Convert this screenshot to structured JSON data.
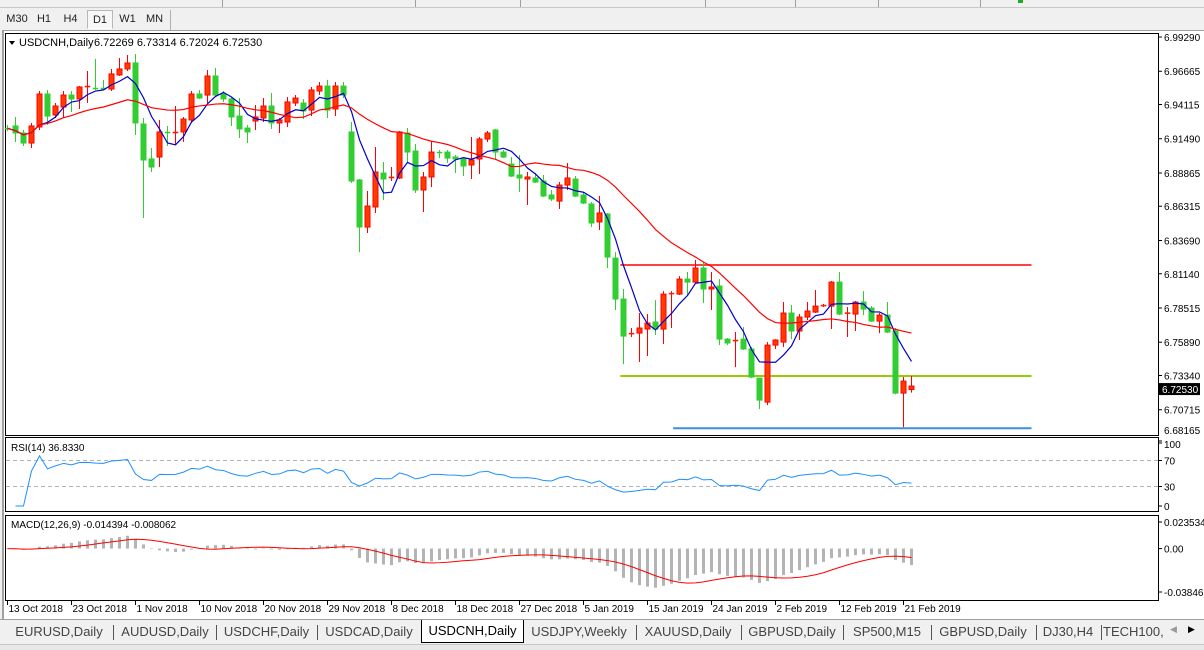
{
  "toolbar": {
    "timeframes": [
      "M30",
      "H1",
      "H4",
      "D1",
      "W1",
      "MN"
    ],
    "active": "D1"
  },
  "chart": {
    "symbol_header": "USDCNH,Daily",
    "ohlc_header": "6.72269 6.73314 6.72024 6.72530",
    "current_price": "6.72530",
    "rsi_label": "RSI(14) 36.8330",
    "macd_label": "MACD(12,26,9) -0.014394 -0.008062"
  },
  "chart_data": {
    "type": "candlestick",
    "symbol": "USDCNH",
    "timeframe": "Daily",
    "bullish_color": "#ff3c00",
    "bearish_color": "#32cd32",
    "ma_colors": [
      "#0000cc",
      "#ff0000"
    ],
    "ohlc": [
      [
        6.9231,
        6.9254,
        6.9208,
        6.9228
      ],
      [
        6.9247,
        6.9316,
        6.9124,
        6.9193
      ],
      [
        6.9193,
        6.9216,
        6.9093,
        6.9116
      ],
      [
        6.9116,
        6.927,
        6.9078,
        6.9247
      ],
      [
        6.9239,
        6.9515,
        6.9216,
        6.9492
      ],
      [
        6.9492,
        6.9523,
        6.9254,
        6.9323
      ],
      [
        6.9331,
        6.9423,
        6.9308,
        6.94
      ],
      [
        6.9392,
        6.9515,
        6.9308,
        6.9484
      ],
      [
        6.9484,
        6.9515,
        6.9354,
        6.9454
      ],
      [
        6.9454,
        6.9553,
        6.9377,
        6.9546
      ],
      [
        6.9546,
        6.9668,
        6.9423,
        6.9553
      ],
      [
        6.9538,
        6.9761,
        6.9523,
        6.9535
      ],
      [
        6.9538,
        6.96,
        6.9523,
        6.953
      ],
      [
        6.953,
        6.9684,
        6.9515,
        6.9646
      ],
      [
        6.9638,
        6.9768,
        6.963,
        6.9684
      ],
      [
        6.9684,
        6.9791,
        6.9668,
        6.973
      ],
      [
        6.973,
        6.9799,
        6.9178,
        6.927
      ],
      [
        6.9262,
        6.9308,
        6.8541,
        6.8986
      ],
      [
        6.8994,
        6.9078,
        6.8894,
        6.8932
      ],
      [
        6.9009,
        6.9293,
        6.8932,
        6.9201
      ],
      [
        6.9201,
        6.9247,
        6.9093,
        6.9193
      ],
      [
        6.9193,
        6.94,
        6.9101,
        6.9201
      ],
      [
        6.9201,
        6.9316,
        6.9124,
        6.93
      ],
      [
        6.9293,
        6.9515,
        6.927,
        6.9492
      ],
      [
        6.9492,
        6.9523,
        6.9454,
        6.9461
      ],
      [
        6.9484,
        6.9676,
        6.9423,
        6.963
      ],
      [
        6.963,
        6.9692,
        6.9469,
        6.9484
      ],
      [
        6.9492,
        6.9515,
        6.9431,
        6.9454
      ],
      [
        6.9454,
        6.9469,
        6.9247,
        6.9316
      ],
      [
        6.9323,
        6.9461,
        6.9155,
        6.9224
      ],
      [
        6.9231,
        6.9254,
        6.9116,
        6.9201
      ],
      [
        6.9285,
        6.9408,
        6.9216,
        6.9316
      ],
      [
        6.9308,
        6.9461,
        6.9277,
        6.94
      ],
      [
        6.94,
        6.95,
        6.9224,
        6.927
      ],
      [
        6.927,
        6.9308,
        6.9193,
        6.9293
      ],
      [
        6.9277,
        6.9469,
        6.9239,
        6.9431
      ],
      [
        6.9423,
        6.9484,
        6.94,
        6.9461
      ],
      [
        6.9423,
        6.9454,
        6.93,
        6.9362
      ],
      [
        6.9369,
        6.9546,
        6.9323,
        6.9523
      ],
      [
        6.9515,
        6.9584,
        6.9484,
        6.9553
      ],
      [
        6.9553,
        6.96,
        6.9308,
        6.9369
      ],
      [
        6.9377,
        6.9584,
        6.9323,
        6.9553
      ],
      [
        6.9553,
        6.9584,
        6.9461,
        6.9484
      ],
      [
        6.9201,
        6.9277,
        6.881,
        6.8825
      ],
      [
        6.8833,
        6.884,
        6.828,
        6.8472
      ],
      [
        6.8472,
        6.8748,
        6.8426,
        6.8633
      ],
      [
        6.8626,
        6.9086,
        6.858,
        6.8894
      ],
      [
        6.8886,
        6.8971,
        6.8679,
        6.884
      ],
      [
        6.8848,
        6.8932,
        6.8825,
        6.8856
      ],
      [
        6.8848,
        6.9208,
        6.884,
        6.9201
      ],
      [
        6.9193,
        6.9231,
        6.8963,
        6.9047
      ],
      [
        6.9055,
        6.9109,
        6.8733,
        6.8756
      ],
      [
        6.8756,
        6.8894,
        6.8587,
        6.8856
      ],
      [
        6.8856,
        6.9132,
        6.8779,
        6.9047
      ],
      [
        6.9047,
        6.9063,
        6.9001,
        6.904
      ],
      [
        6.9047,
        6.9063,
        6.8963,
        6.9001
      ],
      [
        6.9009,
        6.9024,
        6.8886,
        6.8994
      ],
      [
        6.8994,
        6.9009,
        6.8863,
        6.894
      ],
      [
        6.8948,
        6.9162,
        6.884,
        6.8986
      ],
      [
        6.8994,
        6.9162,
        6.8879,
        6.9147
      ],
      [
        6.9147,
        6.9208,
        6.9124,
        6.9193
      ],
      [
        6.9216,
        6.9224,
        6.8994,
        6.9047
      ],
      [
        6.9047,
        6.9063,
        6.9001,
        6.9009
      ],
      [
        6.8955,
        6.9009,
        6.8856,
        6.8863
      ],
      [
        6.8871,
        6.9024,
        6.8741,
        6.8848
      ],
      [
        6.884,
        6.8894,
        6.8641,
        6.8856
      ],
      [
        6.8848,
        6.8886,
        6.881,
        6.8817
      ],
      [
        6.8825,
        6.8871,
        6.8702,
        6.871
      ],
      [
        6.8718,
        6.8756,
        6.8671,
        6.8687
      ],
      [
        6.8671,
        6.8817,
        6.861,
        6.8794
      ],
      [
        6.8794,
        6.8963,
        6.8756,
        6.8848
      ],
      [
        6.884,
        6.8863,
        6.8702,
        6.871
      ],
      [
        6.8718,
        6.8741,
        6.8649,
        6.8656
      ],
      [
        6.8649,
        6.8664,
        6.8472,
        6.8503
      ],
      [
        6.8511,
        6.871,
        6.8449,
        6.858
      ],
      [
        6.8572,
        6.858,
        6.8158,
        6.8242
      ],
      [
        6.8234,
        6.828,
        6.7836,
        6.792
      ],
      [
        6.792,
        6.7997,
        6.7421,
        6.7636
      ],
      [
        6.7652,
        6.7698,
        6.7629,
        6.7659
      ],
      [
        6.7659,
        6.7813,
        6.7437,
        6.7698
      ],
      [
        6.769,
        6.7805,
        6.7483,
        6.7736
      ],
      [
        6.7744,
        6.7912,
        6.7644,
        6.769
      ],
      [
        6.769,
        6.7981,
        6.7575,
        6.7958
      ],
      [
        6.7958,
        6.7981,
        6.7698,
        6.7966
      ],
      [
        6.7958,
        6.8096,
        6.7951,
        6.8073
      ],
      [
        6.8073,
        6.8127,
        6.7951,
        6.805
      ],
      [
        6.805,
        6.8219,
        6.8043,
        6.8158
      ],
      [
        6.8158,
        6.8204,
        6.7889,
        6.7997
      ],
      [
        6.7997,
        6.8127,
        6.7836,
        6.8012
      ],
      [
        6.802,
        6.8073,
        6.7567,
        6.7613
      ],
      [
        6.7613,
        6.7621,
        6.7567,
        6.7583
      ],
      [
        6.7598,
        6.7667,
        6.7398,
        6.7606
      ],
      [
        6.7613,
        6.7705,
        6.7529,
        6.7537
      ],
      [
        6.7537,
        6.7552,
        6.7314,
        6.7322
      ],
      [
        6.7314,
        6.7314,
        6.7076,
        6.7145
      ],
      [
        6.713,
        6.759,
        6.7107,
        6.7567
      ],
      [
        6.7567,
        6.7613,
        6.7537,
        6.7606
      ],
      [
        6.759,
        6.7897,
        6.7552,
        6.7813
      ],
      [
        6.7813,
        6.7874,
        6.7613,
        6.7675
      ],
      [
        6.7675,
        6.7805,
        6.7606,
        6.7782
      ],
      [
        6.7782,
        6.7897,
        6.7759,
        6.7828
      ],
      [
        6.782,
        6.7989,
        6.7813,
        6.7866
      ],
      [
        6.7866,
        6.7882,
        6.7859,
        6.7874
      ],
      [
        6.7866,
        6.8058,
        6.769,
        6.805
      ],
      [
        6.805,
        6.8127,
        6.7797,
        6.7805
      ],
      [
        6.7813,
        6.7859,
        6.7629,
        6.7816
      ],
      [
        6.7805,
        6.7905,
        6.7675,
        6.7897
      ],
      [
        6.7897,
        6.7981,
        6.7797,
        6.7843
      ],
      [
        6.7851,
        6.7866,
        6.7744,
        6.7751
      ],
      [
        6.7751,
        6.7813,
        6.7659,
        6.7797
      ],
      [
        6.7797,
        6.7897,
        6.7659,
        6.7667
      ],
      [
        6.7675,
        6.7698,
        6.719,
        6.7199
      ],
      [
        6.7199,
        6.7322,
        6.6938,
        6.7291
      ],
      [
        6.72269,
        6.73314,
        6.72024,
        6.7253
      ]
    ],
    "price_range": [
      6.68165,
      6.9929
    ],
    "price_ticks": [
      "6.99290",
      "6.96665",
      "6.94115",
      "6.91490",
      "6.88865",
      "6.86315",
      "6.83690",
      "6.81140",
      "6.78515",
      "6.75890",
      "6.73340",
      "6.70715",
      "6.68165"
    ],
    "date_ticks": [
      {
        "bar": 0,
        "label": "13 Oct 2018"
      },
      {
        "bar": 8,
        "label": "23 Oct 2018"
      },
      {
        "bar": 16,
        "label": "1 Nov 2018"
      },
      {
        "bar": 24,
        "label": "10 Nov 2018"
      },
      {
        "bar": 32,
        "label": "20 Nov 2018"
      },
      {
        "bar": 40,
        "label": "29 Nov 2018"
      },
      {
        "bar": 48,
        "label": "8 Dec 2018"
      },
      {
        "bar": 56,
        "label": "18 Dec 2018"
      },
      {
        "bar": 64,
        "label": "27 Dec 2018"
      },
      {
        "bar": 72,
        "label": "5 Jan 2019"
      },
      {
        "bar": 80,
        "label": "15 Jan 2019"
      },
      {
        "bar": 88,
        "label": "24 Jan 2019"
      },
      {
        "bar": 96,
        "label": "2 Feb 2019"
      },
      {
        "bar": 104,
        "label": "12 Feb 2019"
      },
      {
        "bar": 112,
        "label": "21 Feb 2019"
      }
    ],
    "horizontal_lines": [
      {
        "price": 6.8181,
        "from_bar": 76.6,
        "to_bar": 128,
        "color": "#ff4040"
      },
      {
        "price": 6.733,
        "from_bar": 76.6,
        "to_bar": 128,
        "color": "#99cc00"
      },
      {
        "price": 6.693,
        "from_bar": 83.2,
        "to_bar": 128,
        "color": "#3c8fdc"
      }
    ],
    "rsi": {
      "period": 14,
      "levels": [
        70,
        30
      ],
      "axis_ticks": [
        "100",
        "70",
        "30",
        "0"
      ],
      "color": "#1e90ff"
    },
    "macd": {
      "fast": 12,
      "slow": 26,
      "signal": 9,
      "axis_ticks": [
        "0.023534",
        "0.00",
        "-0.038466"
      ],
      "range": [
        -0.038466,
        0.023534
      ],
      "histogram_color": "#b4b4b4",
      "signal_color": "#ff0000"
    }
  },
  "tabs": [
    {
      "label": "EURUSD,Daily"
    },
    {
      "label": "AUDUSD,Daily"
    },
    {
      "label": "USDCHF,Daily"
    },
    {
      "label": "USDCAD,Daily"
    },
    {
      "label": "USDCNH,Daily",
      "active": true
    },
    {
      "label": "USDJPY,Weekly"
    },
    {
      "label": "XAUUSD,Daily"
    },
    {
      "label": "GBPUSD,Daily"
    },
    {
      "label": "SP500,M15"
    },
    {
      "label": "GBPUSD,Daily"
    },
    {
      "label": "DJ30,H4"
    },
    {
      "label": "TECH100,"
    }
  ]
}
